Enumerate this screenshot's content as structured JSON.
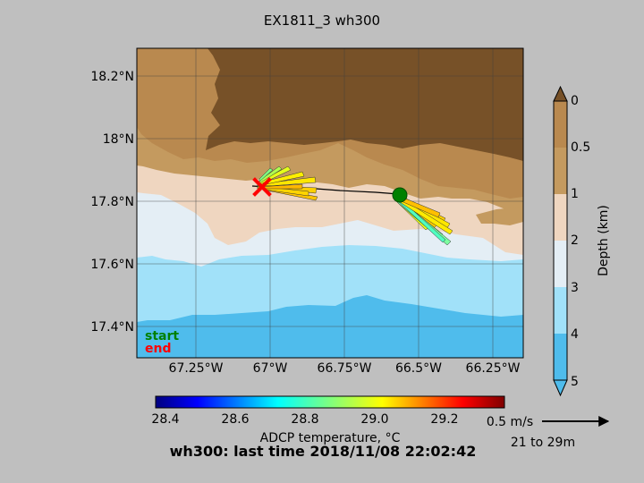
{
  "title": "EX1811_3 wh300",
  "map": {
    "lat_ticks": [
      "18.2°N",
      "18°N",
      "17.8°N",
      "17.6°N",
      "17.4°N"
    ],
    "lon_ticks": [
      "67.25°W",
      "67°W",
      "66.75°W",
      "66.5°W",
      "66.25°W"
    ],
    "legend_start": "start",
    "legend_end": "end",
    "start_color": "#008000",
    "end_color": "#ff0000"
  },
  "depth_colorbar": {
    "label": "Depth (km)",
    "ticks": [
      "0",
      "0.5",
      "1",
      "2",
      "3",
      "4",
      "5"
    ],
    "colors": [
      "#775128",
      "#b9894f",
      "#c49a5f",
      "#efd6c0",
      "#e4eef5",
      "#a1e1f9",
      "#4fbcec"
    ]
  },
  "temp_colorbar": {
    "label": "ADCP temperature, °C",
    "ticks": [
      "28.4",
      "28.6",
      "28.8",
      "29.0",
      "29.2"
    ],
    "colormap": "jet"
  },
  "scale": {
    "speed_label": "0.5 m/s",
    "depth_range": "21 to 29m"
  },
  "footer": "wh300: last time 2018/11/08 22:02:42"
}
